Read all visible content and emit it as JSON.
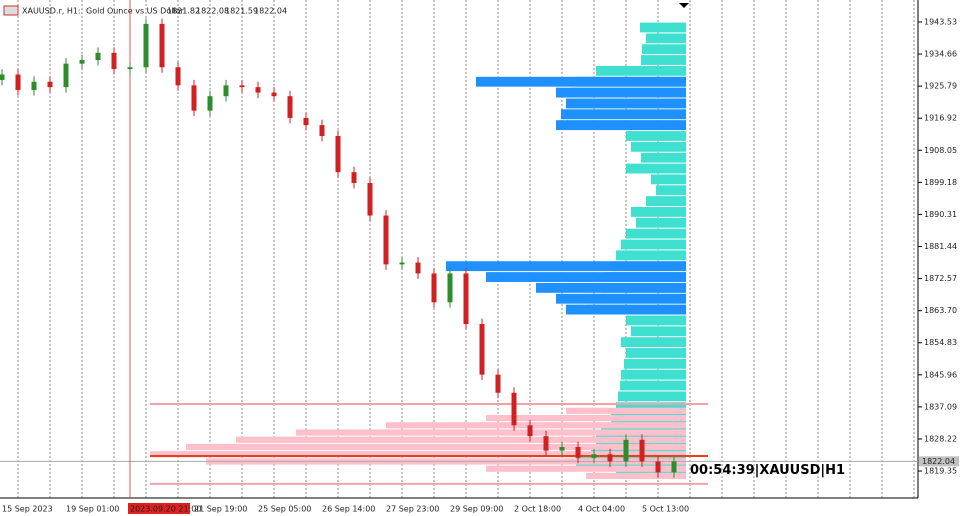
{
  "chart_data": {
    "type": "candlestick",
    "header": {
      "symbol": "XAUUSD.r, H1:",
      "description": "Gold Ounce vs US Dollar",
      "ohlc": [
        1821.82,
        1822.08,
        1821.59,
        1822.04
      ]
    },
    "timer": "00:54:39|XAUUSD|H1",
    "categories": [
      "15 Sep 2023",
      null,
      null,
      null,
      "19 Sep 01:00",
      null,
      null,
      null,
      "2023.09.20 21:00",
      null,
      null,
      null,
      "21 Sep 19:00",
      null,
      null,
      null,
      "25 Sep 05:00",
      null,
      null,
      null,
      "26 Sep 14:00",
      null,
      null,
      null,
      "27 Sep 23:00",
      null,
      null,
      null,
      "29 Sep 09:00",
      null,
      null,
      null,
      "2 Oct 18:00",
      null,
      null,
      null,
      "4 Oct 04:00",
      null,
      null,
      null,
      "5 Oct 13:00",
      null,
      null
    ],
    "highlight_category": 8,
    "open": [
      1927.5,
      1929,
      1924.7,
      1927,
      1925.5,
      1932,
      1933,
      1935,
      1930.5,
      1931,
      1943,
      1931,
      1926,
      1919,
      1923,
      1926,
      1925.5,
      1924,
      1923,
      1917,
      1915,
      1912,
      1902,
      1899,
      1890,
      1876.5,
      1877,
      1874,
      1866,
      1874,
      1860,
      1846,
      1841,
      1832,
      1829,
      1825,
      1826,
      1823,
      1824,
      1822,
      1828,
      1822,
      1819
    ],
    "high": [
      1930.5,
      1930.5,
      1928.5,
      1928.5,
      1933.5,
      1934.5,
      1936.5,
      1936.5,
      1932.5,
      1944.5,
      1944.5,
      1932.5,
      1927.5,
      1924.5,
      1927.5,
      1927.5,
      1927,
      1925.5,
      1924.5,
      1918.5,
      1916.5,
      1913.5,
      1903.5,
      1900.5,
      1891.5,
      1878.5,
      1878.5,
      1875.5,
      1875.5,
      1875.5,
      1861.5,
      1847.5,
      1842.5,
      1833.5,
      1830.5,
      1827.5,
      1827.5,
      1825.5,
      1825.5,
      1829.5,
      1829.5,
      1823.5,
      1823.54
    ],
    "low": [
      1926,
      1923.2,
      1923.2,
      1924,
      1924,
      1930.5,
      1931.5,
      1929,
      1929,
      1929.5,
      1929.5,
      1924.5,
      1917.5,
      1917.5,
      1921.5,
      1924,
      1922.5,
      1921.5,
      1915.5,
      1913.5,
      1910.5,
      1900.5,
      1897.5,
      1888.5,
      1875,
      1875,
      1872.5,
      1864.5,
      1864.5,
      1858.5,
      1844.5,
      1839.5,
      1830.5,
      1827.5,
      1823.5,
      1823.5,
      1821.5,
      1821.5,
      1820.5,
      1820.5,
      1820.5,
      1817.5,
      1817.5
    ],
    "close": [
      1929,
      1924.7,
      1927,
      1925.5,
      1932,
      1933,
      1935,
      1930.5,
      1931,
      1943,
      1931,
      1926,
      1919,
      1923,
      1926,
      1925.5,
      1924,
      1923,
      1917,
      1915,
      1912,
      1902,
      1899,
      1890,
      1876.5,
      1877,
      1874,
      1866,
      1874,
      1860,
      1846,
      1841,
      1832,
      1829,
      1825,
      1826,
      1823,
      1824,
      1822,
      1828,
      1822,
      1819,
      1822.04
    ],
    "up_color": "#2e8b2e",
    "down_color": "#d02020",
    "ylim": [
      1811.9,
      1949.6
    ],
    "yticks": [
      1943.53,
      1934.66,
      1925.79,
      1916.92,
      1908.05,
      1899.18,
      1890.31,
      1881.44,
      1872.57,
      {
        "value": 1863.7,
        "label": "1863.70"
      },
      1854.83,
      1845.96,
      1837.09,
      1828.22,
      1819.35
    ],
    "profiles": [
      {
        "color": "#40e0d0",
        "step": 3,
        "levels": [
          1942,
          1939,
          1936,
          1933,
          1930,
          1927,
          1924,
          1921,
          1918,
          1915,
          1912,
          1909,
          1906,
          1903,
          1900,
          1897,
          1894,
          1891,
          1888,
          1885,
          1882,
          1879,
          1876,
          1873,
          1870,
          1867,
          1864,
          1861,
          1858,
          1855,
          1852,
          1849,
          1846,
          1843,
          1840,
          1837,
          1834,
          1831,
          1828,
          1825,
          1822,
          1819
        ],
        "volumes": [
          46,
          40,
          44,
          45,
          90,
          110,
          115,
          118,
          125,
          120,
          60,
          55,
          45,
          60,
          35,
          30,
          40,
          55,
          50,
          60,
          65,
          70,
          75,
          80,
          85,
          95,
          100,
          60,
          55,
          65,
          60,
          62,
          65,
          66,
          68,
          70,
          75,
          85,
          90,
          95,
          110,
          70
        ]
      },
      {
        "color": "#1e90ff",
        "step": 3,
        "levels": [
          1927,
          1924,
          1921,
          1918,
          1915,
          1876,
          1873,
          1870,
          1867,
          1864
        ],
        "volumes": [
          210,
          130,
          120,
          125,
          130,
          240,
          200,
          150,
          130,
          120
        ]
      },
      {
        "color": "#ffc0cb",
        "step": 2,
        "levels": [
          1836,
          1834,
          1832,
          1830,
          1828,
          1826,
          1824,
          1822,
          1820,
          1818
        ],
        "volumes": [
          120,
          200,
          300,
          390,
          450,
          500,
          536,
          480,
          200,
          100
        ]
      }
    ],
    "lines": [
      {
        "value": 1837.9,
        "color": "#f4a0aa"
      },
      {
        "value": 1815.8,
        "color": "#f4a0aa"
      },
      {
        "value": 1823.5,
        "color": "#e8401c"
      }
    ]
  }
}
